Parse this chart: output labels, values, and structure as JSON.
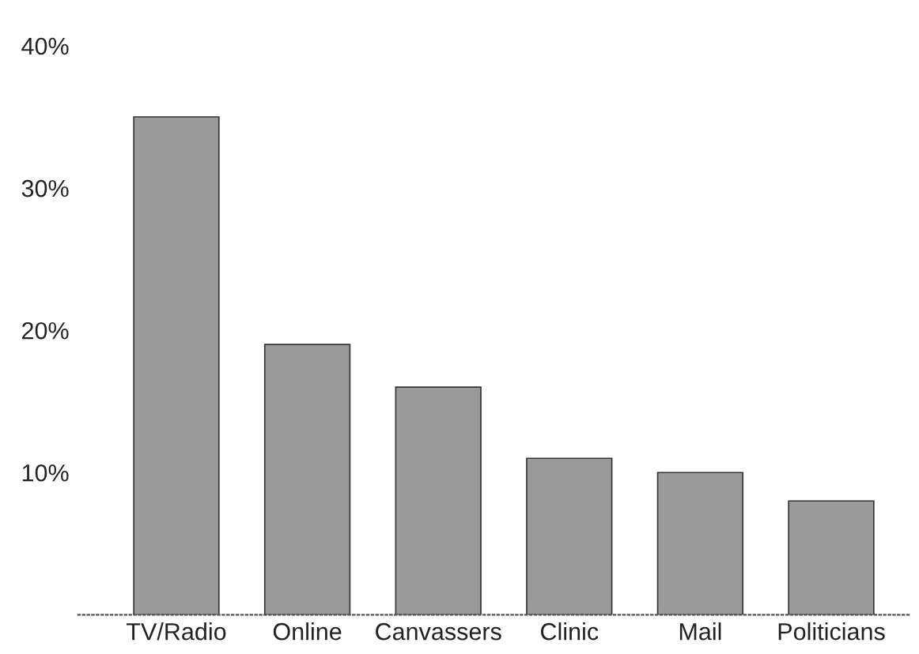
{
  "chart_data": {
    "type": "bar",
    "categories": [
      "TV/Radio",
      "Online",
      "Canvassers",
      "Clinic",
      "Mail",
      "Politicians"
    ],
    "values": [
      35,
      19,
      16,
      11,
      10,
      8
    ],
    "color": "#9a9a9a",
    "ylim": [
      0,
      40
    ],
    "yticks": [
      {
        "value": 10,
        "label": "10%"
      },
      {
        "value": 20,
        "label": "20%"
      },
      {
        "value": 30,
        "label": "30%"
      },
      {
        "value": 40,
        "label": "40%"
      }
    ],
    "grid": false,
    "legend": false
  }
}
